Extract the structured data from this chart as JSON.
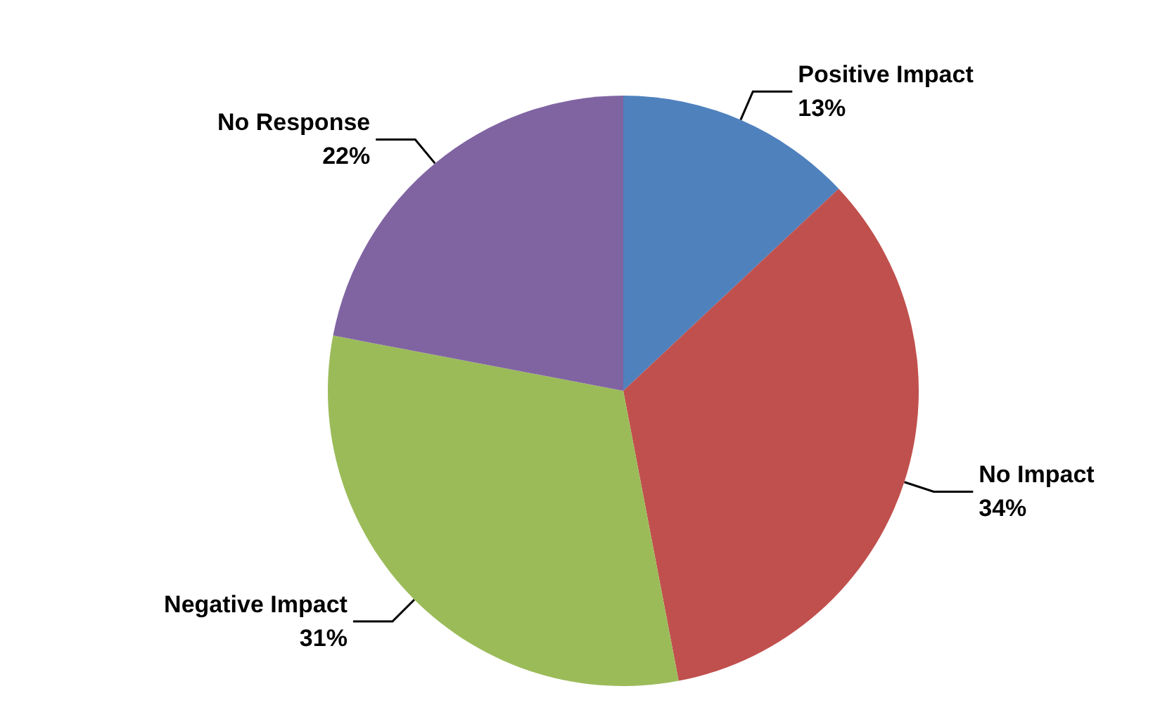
{
  "chart_data": {
    "type": "pie",
    "categories": [
      "Positive Impact",
      "No Impact",
      "Negative Impact",
      "No Response"
    ],
    "values": [
      13,
      34,
      31,
      22
    ],
    "colors": [
      "#4f81bd",
      "#c0504d",
      "#9bbb59",
      "#8064a2"
    ],
    "value_labels": [
      "13%",
      "34%",
      "31%",
      "22%"
    ]
  }
}
